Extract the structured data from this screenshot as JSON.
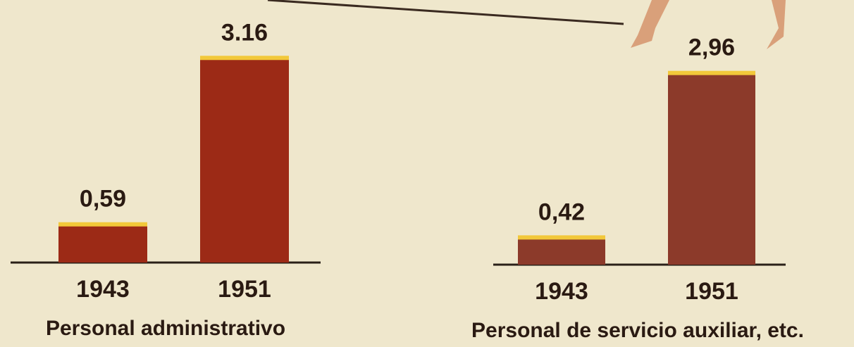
{
  "chart_data": [
    {
      "type": "bar",
      "title": "Personal administrativo",
      "categories": [
        "1943",
        "1951"
      ],
      "values": [
        0.59,
        3.16
      ],
      "value_labels": [
        "0,59",
        "3.16"
      ],
      "color": "#9c2a16"
    },
    {
      "type": "bar",
      "title": "Personal de servicio auxiliar, etc.",
      "categories": [
        "1943",
        "1951"
      ],
      "values": [
        0.42,
        2.96
      ],
      "value_labels": [
        "0,42",
        "2,96"
      ],
      "color": "#8c3a2a"
    }
  ]
}
